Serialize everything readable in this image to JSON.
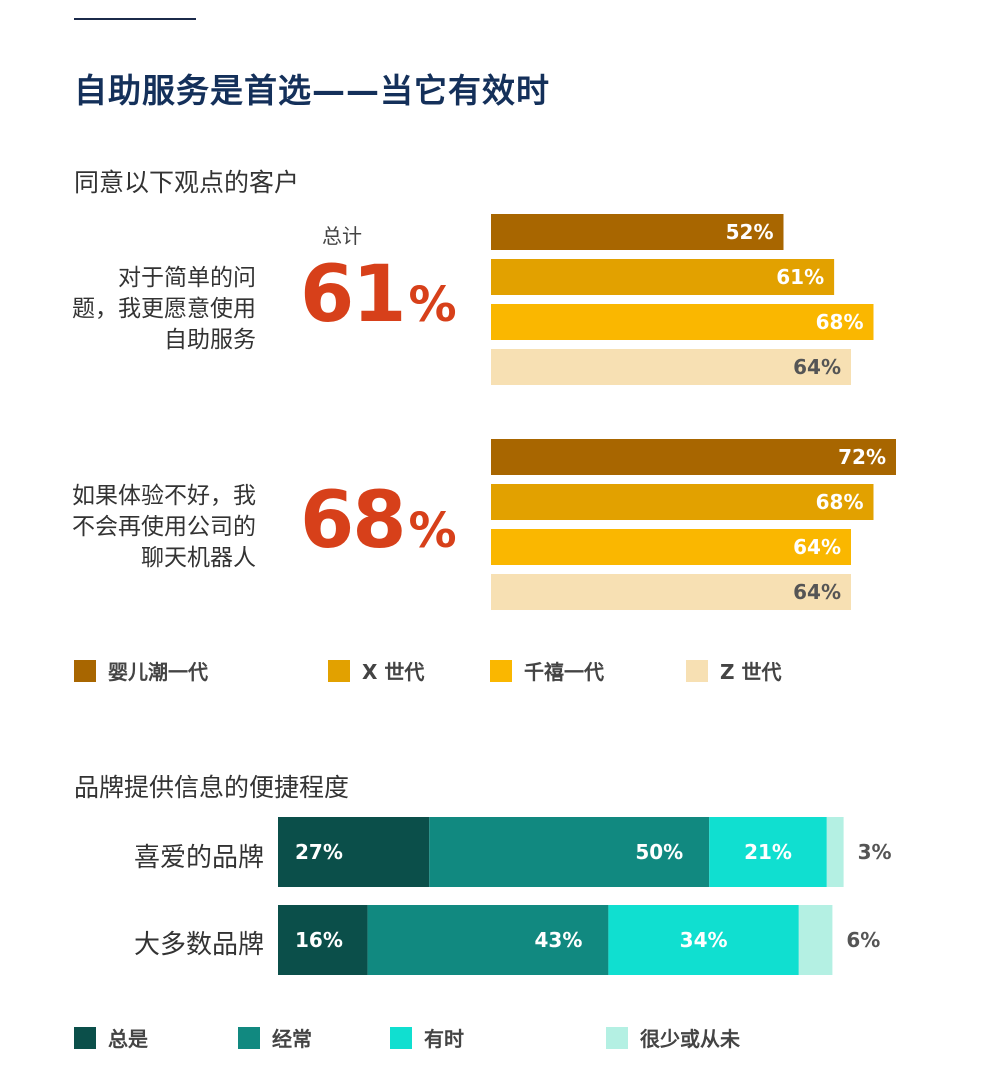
{
  "header": {
    "title": "自助服务是首选——当它有效时",
    "subtitle": "同意以下观点的客户",
    "total_label": "总计"
  },
  "colors": {
    "boomers": "#a86600",
    "genx": "#e2a100",
    "millennials": "#fab700",
    "genz": "#f7e0b3",
    "always": "#0b4f4a",
    "often": "#118980",
    "sometimes": "#10dfd0",
    "rarely": "#b4f0e3",
    "accent": "#d7401a",
    "title": "#14305a"
  },
  "chart_data": [
    {
      "type": "bar",
      "orientation": "horizontal",
      "title": "同意以下观点的客户",
      "series": [
        {
          "name": "婴儿潮一代"
        },
        {
          "name": "X 世代"
        },
        {
          "name": "千禧一代"
        },
        {
          "name": "Z 世代"
        }
      ],
      "questions": [
        {
          "label": "对于简单的问题，我更愿意使用自助服务",
          "label_lines": [
            "对于简单的问",
            "题，我更愿意使用",
            "自助服务"
          ],
          "total": "61",
          "pct_sign": "%",
          "values": [
            52,
            61,
            68,
            64
          ]
        },
        {
          "label": "如果体验不好，我不会再使用公司的聊天机器人",
          "label_lines": [
            "如果体验不好，我",
            "不会再使用公司的",
            "聊天机器人"
          ],
          "total": "68",
          "pct_sign": "%",
          "values": [
            72,
            68,
            64,
            64
          ]
        }
      ],
      "xlim": [
        0,
        72
      ]
    },
    {
      "type": "bar",
      "orientation": "horizontal",
      "stacked": true,
      "title": "品牌提供信息的便捷程度",
      "categories": [
        "喜爱的品牌",
        "大多数品牌"
      ],
      "series": [
        {
          "name": "总是",
          "values": [
            27,
            16
          ]
        },
        {
          "name": "经常",
          "values": [
            50,
            43
          ]
        },
        {
          "name": "有时",
          "values": [
            21,
            34
          ]
        },
        {
          "name": "很少或从未",
          "values": [
            3,
            6
          ]
        }
      ],
      "xlim": [
        0,
        100
      ]
    }
  ]
}
